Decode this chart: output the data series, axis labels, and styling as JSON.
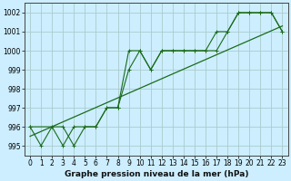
{
  "xlabel": "Graphe pression niveau de la mer (hPa)",
  "ylim": [
    994.5,
    1002.5
  ],
  "xlim": [
    -0.5,
    23.5
  ],
  "yticks": [
    995,
    996,
    997,
    998,
    999,
    1000,
    1001,
    1002
  ],
  "xticks": [
    0,
    1,
    2,
    3,
    4,
    5,
    6,
    7,
    8,
    9,
    10,
    11,
    12,
    13,
    14,
    15,
    16,
    17,
    18,
    19,
    20,
    21,
    22,
    23
  ],
  "bg_color": "#cceeff",
  "grid_color": "#aacccc",
  "line_color": "#1a6b1a",
  "line1_x": [
    0,
    1,
    2,
    3,
    4,
    5,
    6,
    7,
    8,
    9,
    10,
    11,
    12,
    13,
    14,
    15,
    16,
    17,
    18,
    19,
    20,
    21,
    22,
    23
  ],
  "line1_y": [
    996.0,
    995.0,
    996.0,
    995.0,
    996.0,
    996.0,
    996.0,
    997.0,
    997.0,
    999.0,
    1000.0,
    999.0,
    1000.0,
    1000.0,
    1000.0,
    1000.0,
    1000.0,
    1000.0,
    1001.0,
    1002.0,
    1002.0,
    1002.0,
    1002.0,
    1001.0
  ],
  "line2_x": [
    0,
    3,
    4,
    5,
    6,
    7,
    8,
    9,
    10,
    11,
    12,
    13,
    14,
    15,
    16,
    17,
    18,
    19,
    20,
    21,
    22,
    23
  ],
  "line2_y": [
    996.0,
    996.0,
    995.0,
    996.0,
    996.0,
    997.0,
    997.0,
    1000.0,
    1000.0,
    999.0,
    1000.0,
    1000.0,
    1000.0,
    1000.0,
    1000.0,
    1001.0,
    1001.0,
    1002.0,
    1002.0,
    1002.0,
    1002.0,
    1001.0
  ],
  "line3_x": [
    0,
    23
  ],
  "line3_y": [
    995.5,
    1001.3
  ],
  "spine_color": "#444444",
  "tick_fontsize": 5.5,
  "xlabel_fontsize": 6.5
}
